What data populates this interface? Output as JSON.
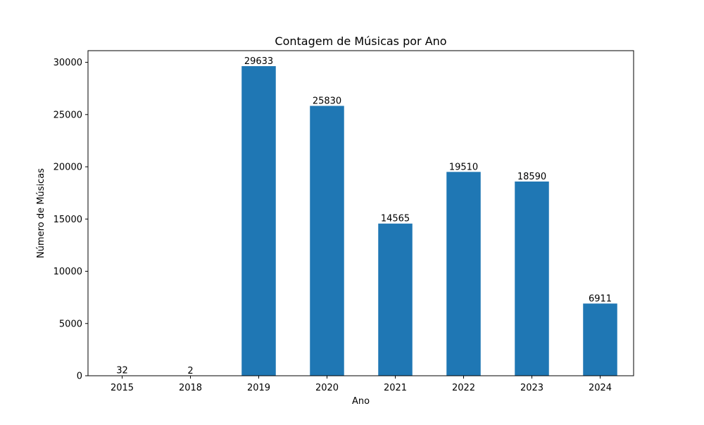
{
  "chart_data": {
    "type": "bar",
    "title": "Contagem de Músicas por Ano",
    "xlabel": "Ano",
    "ylabel": "Número de Músicas",
    "categories": [
      "2015",
      "2018",
      "2019",
      "2020",
      "2021",
      "2022",
      "2023",
      "2024"
    ],
    "values": [
      32,
      2,
      29633,
      25830,
      14565,
      19510,
      18590,
      6911
    ],
    "data_labels": [
      "32",
      "2",
      "29633",
      "25830",
      "14565",
      "19510",
      "18590",
      "6911"
    ],
    "ylim": [
      0,
      31115
    ],
    "yticks": [
      0,
      5000,
      10000,
      15000,
      20000,
      25000,
      30000
    ],
    "ytick_labels": [
      "0",
      "5000",
      "10000",
      "15000",
      "20000",
      "25000",
      "30000"
    ],
    "bar_color": "#1f77b4",
    "grid": false,
    "legend": "none"
  }
}
